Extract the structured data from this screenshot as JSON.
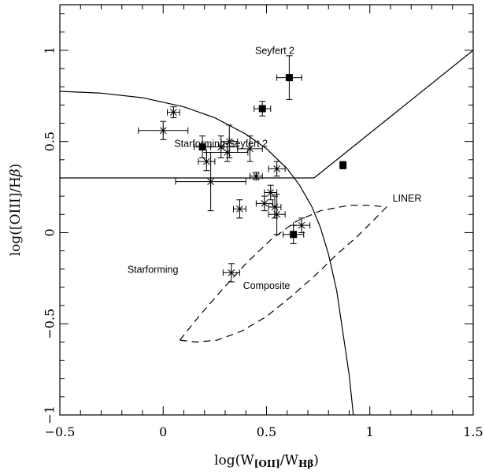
{
  "chart_data": {
    "type": "scatter",
    "xlabel": "log(W[OII]/WHβ)",
    "ylabel": "log([OIII]/Hβ)",
    "xlim": [
      -0.5,
      1.5
    ],
    "ylim": [
      -1.0,
      1.25
    ],
    "x_ticks": [
      -0.5,
      0,
      0.5,
      1,
      1.5
    ],
    "x_tick_labels": [
      "−0.5",
      "0",
      "0.5",
      "1",
      "1.5"
    ],
    "y_ticks": [
      -1,
      -0.5,
      0,
      0.5,
      1
    ],
    "y_tick_labels": [
      "−1",
      "−0.5",
      "0",
      "0.5",
      "1"
    ],
    "grid": false,
    "annotations": [
      {
        "key": "seyfert2",
        "text": "Seyfert 2",
        "x": 0.54,
        "y": 0.98
      },
      {
        "key": "sf_sey2",
        "text": "Starforming-Seyfert 2",
        "x": 0.28,
        "y": 0.47
      },
      {
        "key": "liner",
        "text": "LINER",
        "x": 1.18,
        "y": 0.17
      },
      {
        "key": "starforming",
        "text": "Starforming",
        "x": -0.05,
        "y": -0.22
      },
      {
        "key": "composite",
        "text": "Composite",
        "x": 0.5,
        "y": -0.31
      }
    ],
    "series": [
      {
        "marker": "square",
        "points": [
          {
            "x": 0.61,
            "y": 0.85,
            "xerr": 0.06,
            "yerr": 0.12
          },
          {
            "x": 0.48,
            "y": 0.68,
            "xerr": 0.04,
            "yerr": 0.04
          },
          {
            "x": 0.19,
            "y": 0.47,
            "xerr": 0.04,
            "yerr": 0.06
          },
          {
            "x": 0.87,
            "y": 0.37,
            "xerr": 0.01,
            "yerr": 0.02
          },
          {
            "x": 0.63,
            "y": -0.01,
            "xerr": 0.05,
            "yerr": 0.05
          }
        ]
      },
      {
        "marker": "asterisk",
        "points": [
          {
            "x": 0.05,
            "y": 0.66,
            "xerr": 0.03,
            "yerr": 0.03
          },
          {
            "x": 0.0,
            "y": 0.56,
            "xerr": 0.12,
            "yerr": 0.05
          },
          {
            "x": 0.28,
            "y": 0.47,
            "xerr": 0.08,
            "yerr": 0.06
          },
          {
            "x": 0.32,
            "y": 0.5,
            "xerr": 0.04,
            "yerr": 0.09
          },
          {
            "x": 0.31,
            "y": 0.44,
            "xerr": 0.1,
            "yerr": 0.05
          },
          {
            "x": 0.42,
            "y": 0.46,
            "xerr": 0.06,
            "yerr": 0.07
          },
          {
            "x": 0.21,
            "y": 0.39,
            "xerr": 0.04,
            "yerr": 0.05
          },
          {
            "x": 0.45,
            "y": 0.31,
            "xerr": 0.03,
            "yerr": 0.02
          },
          {
            "x": 0.55,
            "y": 0.35,
            "xerr": 0.04,
            "yerr": 0.04
          },
          {
            "x": 0.23,
            "y": 0.28,
            "xerr": 0.17,
            "yerr": 0.16
          },
          {
            "x": 0.52,
            "y": 0.22,
            "xerr": 0.03,
            "yerr": 0.04
          },
          {
            "x": 0.49,
            "y": 0.16,
            "xerr": 0.04,
            "yerr": 0.04
          },
          {
            "x": 0.54,
            "y": 0.14,
            "xerr": 0.03,
            "yerr": 0.06
          },
          {
            "x": 0.37,
            "y": 0.13,
            "xerr": 0.03,
            "yerr": 0.05
          },
          {
            "x": 0.55,
            "y": 0.1,
            "xerr": 0.04,
            "yerr": 0.11
          },
          {
            "x": 0.67,
            "y": 0.04,
            "xerr": 0.04,
            "yerr": 0.04
          },
          {
            "x": 0.33,
            "y": -0.22,
            "xerr": 0.04,
            "yerr": 0.05
          }
        ]
      }
    ],
    "lines": [
      {
        "key": "starforming_boundary",
        "style": "solid",
        "points": [
          [
            -0.5,
            0.775
          ],
          [
            -0.3,
            0.765
          ],
          [
            -0.1,
            0.74
          ],
          [
            0.1,
            0.69
          ],
          [
            0.25,
            0.63
          ],
          [
            0.4,
            0.54
          ],
          [
            0.5,
            0.46
          ],
          [
            0.6,
            0.35
          ],
          [
            0.66,
            0.26
          ],
          [
            0.72,
            0.14
          ],
          [
            0.76,
            0.03
          ],
          [
            0.8,
            -0.12
          ],
          [
            0.84,
            -0.32
          ],
          [
            0.87,
            -0.55
          ],
          [
            0.9,
            -0.78
          ],
          [
            0.92,
            -1.0
          ]
        ]
      },
      {
        "key": "seyfert_liner_divide",
        "style": "solid",
        "points": [
          [
            0.73,
            0.3
          ],
          [
            1.5,
            1.0
          ]
        ]
      },
      {
        "key": "sf_seyfert_divide",
        "style": "solid",
        "points": [
          [
            -0.5,
            0.3
          ],
          [
            0.73,
            0.3
          ]
        ]
      },
      {
        "key": "liner_composite_contour",
        "style": "dashed",
        "points": [
          [
            0.08,
            -0.59
          ],
          [
            0.18,
            -0.45
          ],
          [
            0.28,
            -0.32
          ],
          [
            0.4,
            -0.17
          ],
          [
            0.52,
            -0.04
          ],
          [
            0.64,
            0.06
          ],
          [
            0.76,
            0.12
          ],
          [
            0.9,
            0.15
          ],
          [
            1.0,
            0.15
          ],
          [
            1.08,
            0.14
          ],
          [
            1.02,
            0.07
          ],
          [
            0.94,
            -0.02
          ],
          [
            0.84,
            -0.12
          ],
          [
            0.74,
            -0.23
          ],
          [
            0.62,
            -0.35
          ],
          [
            0.5,
            -0.46
          ],
          [
            0.38,
            -0.54
          ],
          [
            0.26,
            -0.59
          ],
          [
            0.16,
            -0.6
          ],
          [
            0.08,
            -0.59
          ]
        ]
      }
    ]
  }
}
